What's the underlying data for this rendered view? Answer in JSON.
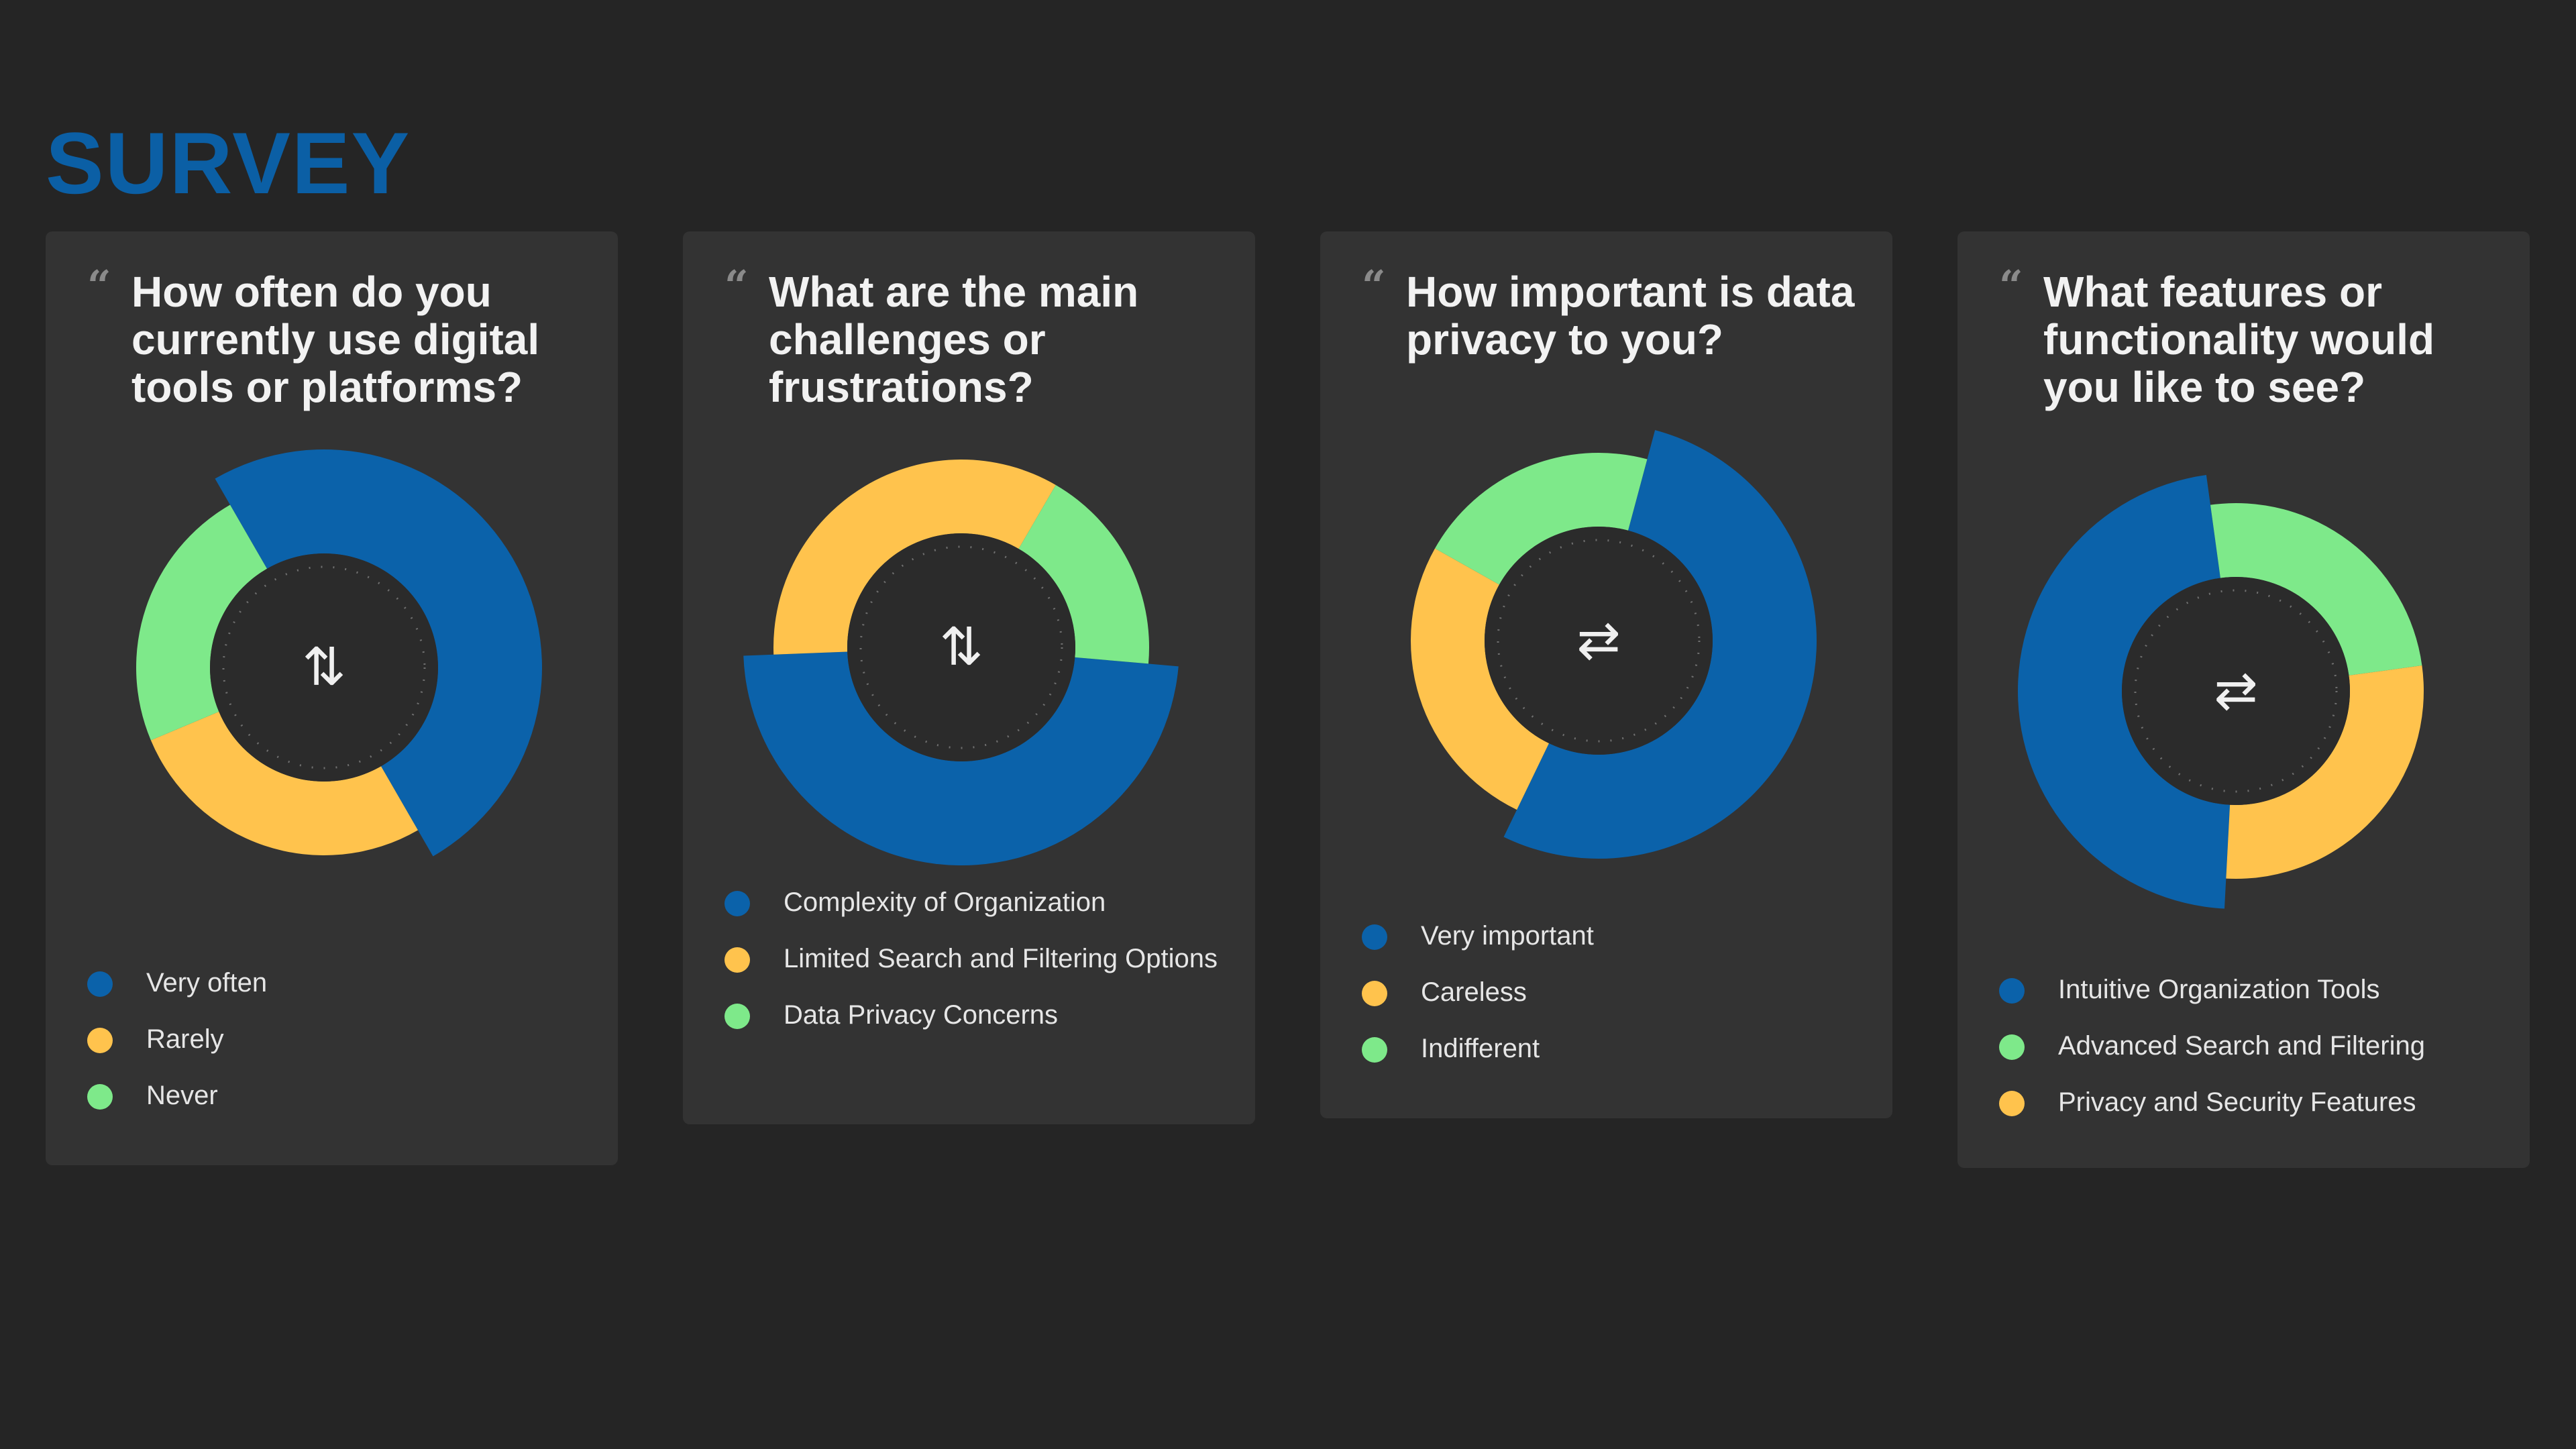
{
  "title": "SURVEY",
  "colors": {
    "blue": "#0b62aa",
    "yellow": "#ffc34d",
    "green": "#7ee98a",
    "card": "#333333",
    "center": "#2b2b2b"
  },
  "quote_mark": "“",
  "chart_data": [
    {
      "type": "pie",
      "title": "How often do you currently use digital tools or platforms?",
      "center_icon": "swap-vertical-icon",
      "center_glyph": "⇅",
      "categories": [
        "Very often",
        "Rarely",
        "Never"
      ],
      "values": [
        50,
        27,
        23
      ],
      "colors": [
        "#0b62aa",
        "#ffc34d",
        "#7ee98a"
      ],
      "emphasized": "Very often",
      "legend": "bottom"
    },
    {
      "type": "pie",
      "title": "What are the main challenges or frustrations?",
      "center_icon": "swap-vertical-icon",
      "center_glyph": "⇅",
      "categories": [
        "Complexity of Organization",
        "Limited Search and Filtering Options",
        "Data Privacy Concerns"
      ],
      "values": [
        48,
        34,
        18
      ],
      "colors": [
        "#0b62aa",
        "#ffc34d",
        "#7ee98a"
      ],
      "emphasized": "Complexity of Organization",
      "legend": "bottom"
    },
    {
      "type": "pie",
      "title": "How important is data privacy to you?",
      "center_icon": "swap-horizontal-icon",
      "center_glyph": "⇄",
      "categories": [
        "Very important",
        "Careless",
        "Indifferent"
      ],
      "values": [
        53,
        26,
        21
      ],
      "colors": [
        "#0b62aa",
        "#ffc34d",
        "#7ee98a"
      ],
      "emphasized": "Very important",
      "legend": "bottom"
    },
    {
      "type": "pie",
      "title": "What features or functionality would you like to see?",
      "center_icon": "swap-horizontal-icon",
      "center_glyph": "⇄",
      "categories": [
        "Intuitive Organization Tools",
        "Advanced Search and Filtering",
        "Privacy and Security Features"
      ],
      "values": [
        47,
        25,
        28
      ],
      "colors": [
        "#0b62aa",
        "#7ee98a",
        "#ffc34d"
      ],
      "emphasized": "Intuitive Organization Tools",
      "legend": "bottom"
    }
  ]
}
